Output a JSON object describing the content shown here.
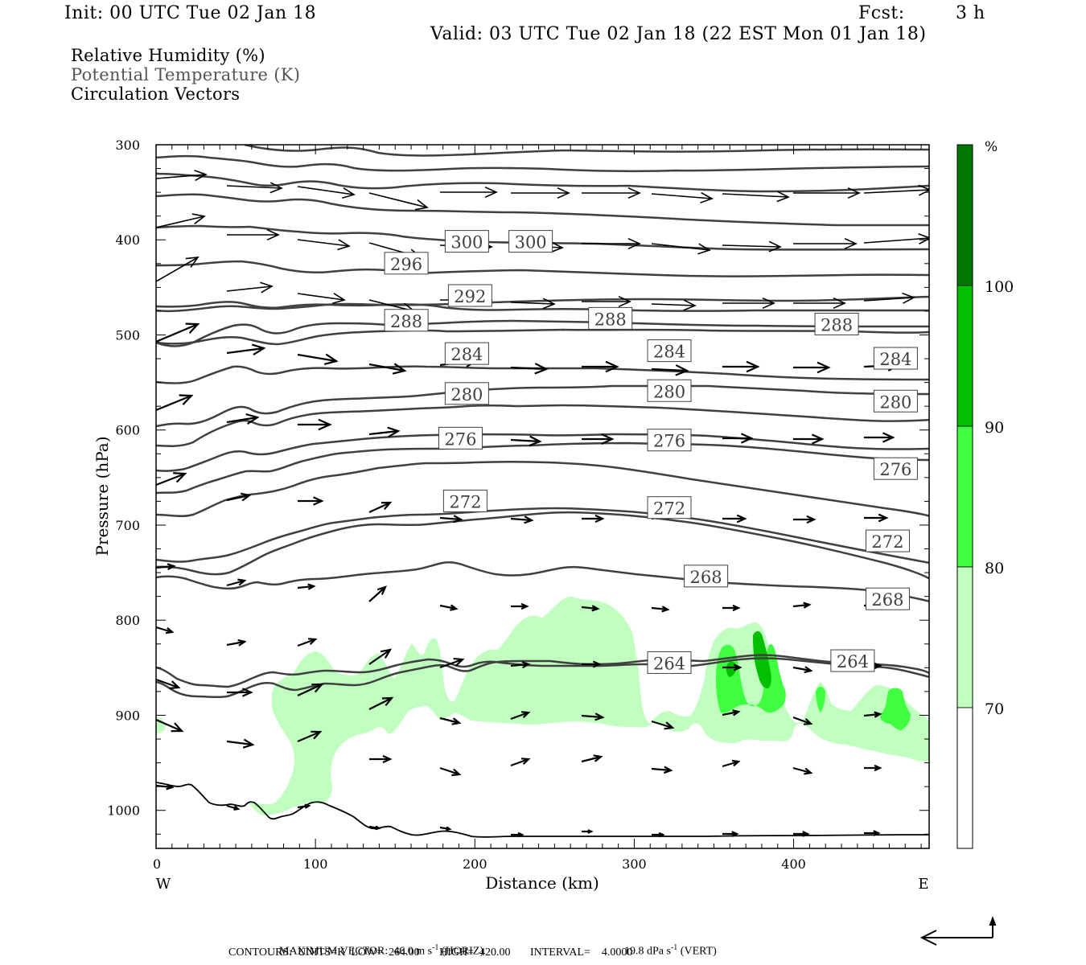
{
  "header": {
    "init": "Init: 00 UTC Tue 02 Jan 18",
    "fcst_label": "Fcst:",
    "fcst_value": "3 h",
    "valid": "Valid: 03 UTC Tue 02 Jan 18 (22 EST Mon 01 Jan 18)"
  },
  "legend": {
    "items": [
      "Relative Humidity (%)",
      "Potential Temperature (K)",
      "Circulation Vectors"
    ]
  },
  "footer": {
    "max_vector_label": "MAXIMUM VECTOR:",
    "max_horiz": "46.0 m s",
    "max_horiz_exp": "-1",
    "max_horiz_tag": "(HORIZ)",
    "max_vert": "19.8 dPa s",
    "max_vert_exp": "-1",
    "max_vert_tag": "(VERT)",
    "contours": "CONTOURS:  UNITS=K  LOW=  264.00       HIGH=  420.00       INTERVAL=    4.0000"
  },
  "chart_data": {
    "type": "heatmap",
    "title": "Relative Humidity (%), Potential Temperature (K), Circulation Vectors",
    "xlabel": "Distance (km)",
    "ylabel": "Pressure (hPa)",
    "x_ticks": [
      "0",
      "100",
      "200",
      "300",
      "400"
    ],
    "x_tick_values": [
      0,
      100,
      200,
      300,
      400
    ],
    "x_end_labels": {
      "left": "W",
      "right": "E"
    },
    "xlim": [
      0,
      485
    ],
    "y_ticks": [
      "300",
      "400",
      "500",
      "600",
      "700",
      "800",
      "900",
      "1000"
    ],
    "y_tick_values": [
      300,
      400,
      500,
      600,
      700,
      800,
      900,
      1000
    ],
    "ylim": [
      1040,
      300
    ],
    "colorbar": {
      "unit": "%",
      "levels": [
        "70",
        "80",
        "90",
        "100"
      ],
      "level_values": [
        70,
        80,
        90,
        100
      ],
      "colors": [
        "#ffffff",
        "#c0ffc0",
        "#40ff40",
        "#00c000",
        "#007800"
      ]
    },
    "contour_color": "#404040",
    "vector_color": "#000000",
    "theta_contours_K": [
      264,
      268,
      272,
      276,
      280,
      284,
      288,
      292,
      296,
      300
    ],
    "contour_labels": [
      {
        "value": "300",
        "x_km": 195,
        "p": 402
      },
      {
        "value": "300",
        "x_km": 235,
        "p": 402
      },
      {
        "value": "296",
        "x_km": 157,
        "p": 425
      },
      {
        "value": "292",
        "x_km": 197,
        "p": 459
      },
      {
        "value": "288",
        "x_km": 157,
        "p": 485
      },
      {
        "value": "288",
        "x_km": 285,
        "p": 483
      },
      {
        "value": "288",
        "x_km": 427,
        "p": 489
      },
      {
        "value": "284",
        "x_km": 195,
        "p": 520
      },
      {
        "value": "284",
        "x_km": 322,
        "p": 517
      },
      {
        "value": "284",
        "x_km": 464,
        "p": 525
      },
      {
        "value": "280",
        "x_km": 195,
        "p": 562
      },
      {
        "value": "280",
        "x_km": 322,
        "p": 559
      },
      {
        "value": "280",
        "x_km": 464,
        "p": 570
      },
      {
        "value": "276",
        "x_km": 191,
        "p": 609
      },
      {
        "value": "276",
        "x_km": 322,
        "p": 611
      },
      {
        "value": "276",
        "x_km": 464,
        "p": 641
      },
      {
        "value": "272",
        "x_km": 194,
        "p": 675
      },
      {
        "value": "272",
        "x_km": 322,
        "p": 682
      },
      {
        "value": "272",
        "x_km": 459,
        "p": 717
      },
      {
        "value": "268",
        "x_km": 345,
        "p": 754
      },
      {
        "value": "268",
        "x_km": 459,
        "p": 778
      },
      {
        "value": "264",
        "x_km": 322,
        "p": 845
      },
      {
        "value": "264",
        "x_km": 437,
        "p": 843
      }
    ],
    "max_vector": {
      "horiz_m_s": 46.0,
      "vert_dPa_s": 19.8
    },
    "contour_settings": {
      "units": "K",
      "low": 264.0,
      "high": 420.0,
      "interval": 4.0
    }
  }
}
